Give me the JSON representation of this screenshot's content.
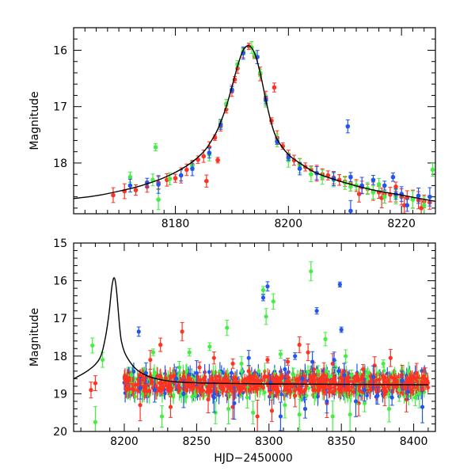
{
  "colors": {
    "red": "#ff3322",
    "green": "#44ee44",
    "blue": "#2255ee",
    "model": "#000000"
  },
  "chart_data": [
    {
      "type": "scatter",
      "xlabel": "",
      "ylabel": "Magnitude",
      "xlim": [
        8162,
        8226
      ],
      "ylim": [
        18.9,
        15.6
      ],
      "y_inverted": true,
      "xticks_major": [
        8180,
        8200,
        8220
      ],
      "xticks_minor_step": 2,
      "yticks_major": [
        16,
        17,
        18
      ],
      "yticks_minor_step": 0.2,
      "model_curve": {
        "x": [
          8162,
          8166,
          8170,
          8174,
          8178,
          8182,
          8185,
          8187,
          8188,
          8189,
          8190,
          8191,
          8192,
          8193,
          8194,
          8195,
          8196,
          8197,
          8198,
          8200,
          8202,
          8205,
          8210,
          8215,
          8220,
          8226
        ],
        "y": [
          18.63,
          18.58,
          18.5,
          18.4,
          18.26,
          18.05,
          17.8,
          17.5,
          17.28,
          17.0,
          16.65,
          16.28,
          16.0,
          15.92,
          16.05,
          16.4,
          16.88,
          17.3,
          17.58,
          17.85,
          18.0,
          18.18,
          18.35,
          18.48,
          18.57,
          18.68
        ]
      },
      "series": [
        {
          "name": "",
          "color": "red",
          "points": [
            [
              8169,
              18.57
            ],
            [
              8171,
              18.5
            ],
            [
              8173,
              18.48
            ],
            [
              8175,
              18.42
            ],
            [
              8177,
              18.35
            ],
            [
              8178.5,
              18.3
            ],
            [
              8180,
              18.27
            ],
            [
              8181,
              18.22
            ],
            [
              8182,
              18.12
            ],
            [
              8183,
              18.03
            ],
            [
              8184,
              17.94
            ],
            [
              8185,
              17.88
            ],
            [
              8186,
              17.72
            ],
            [
              8187,
              17.55
            ],
            [
              8188,
              17.35
            ],
            [
              8189,
              17.05
            ],
            [
              8190,
              16.72
            ],
            [
              8190.5,
              16.52
            ],
            [
              8191,
              16.32
            ],
            [
              8192,
              16.05
            ],
            [
              8193,
              15.93
            ],
            [
              8194,
              16.1
            ],
            [
              8195,
              16.42
            ],
            [
              8196,
              16.85
            ],
            [
              8197,
              17.25
            ],
            [
              8197.5,
              16.66
            ],
            [
              8198,
              17.55
            ],
            [
              8199,
              17.7
            ],
            [
              8200,
              17.85
            ],
            [
              8201,
              17.95
            ],
            [
              8202,
              18.02
            ],
            [
              8203,
              18.07
            ],
            [
              8204,
              18.12
            ],
            [
              8205,
              18.18
            ],
            [
              8206,
              18.2
            ],
            [
              8207,
              18.22
            ],
            [
              8208,
              18.26
            ],
            [
              8209,
              18.3
            ],
            [
              8210,
              18.33
            ],
            [
              8211,
              18.36
            ],
            [
              8212,
              18.4
            ],
            [
              8213,
              18.43
            ],
            [
              8214,
              18.46
            ],
            [
              8215,
              18.5
            ],
            [
              8216,
              18.52
            ],
            [
              8217,
              18.55
            ],
            [
              8218,
              18.56
            ],
            [
              8219,
              18.58
            ],
            [
              8220,
              18.6
            ],
            [
              8221,
              18.62
            ],
            [
              8222,
              18.64
            ],
            [
              8223,
              18.66
            ],
            [
              8224,
              18.68
            ],
            [
              8225,
              18.7
            ],
            [
              8185.5,
              18.32
            ],
            [
              8187.5,
              17.95
            ],
            [
              8219,
              18.42
            ],
            [
              8220.5,
              18.75
            ],
            [
              8223.5,
              18.8
            ],
            [
              8212.5,
              18.55
            ],
            [
              8216.5,
              18.62
            ]
          ]
        },
        {
          "name": "",
          "color": "green",
          "points": [
            [
              8172,
              18.25
            ],
            [
              8176,
              18.3
            ],
            [
              8179,
              18.28
            ],
            [
              8183,
              18.05
            ],
            [
              8186,
              17.85
            ],
            [
              8188,
              17.3
            ],
            [
              8189,
              16.95
            ],
            [
              8191,
              16.25
            ],
            [
              8192,
              16.02
            ],
            [
              8193.5,
              15.95
            ],
            [
              8194,
              16.08
            ],
            [
              8195,
              16.4
            ],
            [
              8196,
              16.9
            ],
            [
              8198,
              17.6
            ],
            [
              8200,
              17.95
            ],
            [
              8202,
              18.05
            ],
            [
              8204,
              18.2
            ],
            [
              8206,
              18.25
            ],
            [
              8208,
              18.3
            ],
            [
              8210,
              18.35
            ],
            [
              8212,
              18.4
            ],
            [
              8214,
              18.45
            ],
            [
              8215,
              18.52
            ],
            [
              8217,
              18.6
            ],
            [
              8219,
              18.6
            ],
            [
              8222,
              18.65
            ],
            [
              8225.5,
              18.12
            ],
            [
              8176.5,
              17.72
            ],
            [
              8177,
              18.65
            ],
            [
              8211,
              18.42
            ],
            [
              8216,
              18.38
            ],
            [
              8224,
              18.75
            ]
          ]
        },
        {
          "name": "",
          "color": "blue",
          "points": [
            [
              8172,
              18.4
            ],
            [
              8175,
              18.35
            ],
            [
              8177,
              18.38
            ],
            [
              8181,
              18.22
            ],
            [
              8183,
              18.1
            ],
            [
              8186,
              17.82
            ],
            [
              8188,
              17.32
            ],
            [
              8190,
              16.7
            ],
            [
              8192,
              16.05
            ],
            [
              8194.5,
              16.12
            ],
            [
              8196,
              16.88
            ],
            [
              8198,
              17.62
            ],
            [
              8200,
              17.9
            ],
            [
              8202,
              18.1
            ],
            [
              8205,
              18.18
            ],
            [
              8208,
              18.28
            ],
            [
              8210.5,
              17.35
            ],
            [
              8211,
              18.25
            ],
            [
              8213,
              18.4
            ],
            [
              8215,
              18.3
            ],
            [
              8217,
              18.4
            ],
            [
              8219,
              18.55
            ],
            [
              8221,
              18.75
            ],
            [
              8223,
              18.58
            ],
            [
              8225,
              18.6
            ],
            [
              8211,
              18.85
            ],
            [
              8218.5,
              18.25
            ],
            [
              8220,
              18.55
            ]
          ]
        }
      ]
    },
    {
      "type": "scatter",
      "xlabel": "HJD−2450000",
      "ylabel": "Magnitude",
      "xlim": [
        8165,
        8415
      ],
      "ylim": [
        20,
        15
      ],
      "y_inverted": true,
      "xticks_major": [
        8200,
        8250,
        8300,
        8350,
        8400
      ],
      "xticks_minor_step": 10,
      "yticks_major": [
        15,
        16,
        17,
        18,
        19,
        20
      ],
      "yticks_minor_step": 0.2,
      "model_curve": {
        "x": [
          8165,
          8170,
          8175,
          8180,
          8184,
          8187,
          8189,
          8190,
          8191,
          8192,
          8193,
          8194,
          8195,
          8196,
          8197,
          8198,
          8200,
          8203,
          8207,
          8212,
          8220,
          8235,
          8260,
          8300,
          8350,
          8410
        ],
        "y": [
          18.6,
          18.5,
          18.38,
          18.22,
          17.98,
          17.5,
          17.0,
          16.68,
          16.3,
          16.02,
          15.92,
          16.05,
          16.4,
          16.88,
          17.3,
          17.6,
          17.88,
          18.1,
          18.3,
          18.45,
          18.58,
          18.68,
          18.72,
          18.74,
          18.75,
          18.76
        ]
      },
      "series": [
        {
          "name": "",
          "color": "red",
          "points": [
            [
              8218,
              18.1
            ],
            [
              8225,
              17.7
            ],
            [
              8240,
              17.35
            ],
            [
              8252,
              18.3
            ],
            [
              8262,
              18.05
            ],
            [
              8275,
              18.2
            ],
            [
              8286,
              18.4
            ],
            [
              8299,
              18.1
            ],
            [
              8305,
              18.9
            ],
            [
              8313,
              18.15
            ],
            [
              8321,
              17.7
            ],
            [
              8327,
              17.9
            ],
            [
              8331,
              18.35
            ],
            [
              8338,
              18.5
            ],
            [
              8344,
              18.2
            ],
            [
              8352,
              18.4
            ],
            [
              8365,
              18.35
            ],
            [
              8373,
              18.25
            ],
            [
              8384,
              18.05
            ],
            [
              8392,
              18.5
            ],
            [
              8402,
              18.45
            ],
            [
              8408,
              18.6
            ],
            [
              8211,
              19.3
            ],
            [
              8232,
              19.35
            ],
            [
              8258,
              19.15
            ],
            [
              8275,
              19.35
            ],
            [
              8292,
              19.6
            ],
            [
              8302,
              19.45
            ],
            [
              8318,
              19.05
            ],
            [
              8340,
              19.25
            ],
            [
              8362,
              19.25
            ],
            [
              8380,
              19.0
            ],
            [
              8395,
              19.15
            ],
            [
              8180,
              18.72
            ],
            [
              8177,
              18.9
            ]
          ]
        },
        {
          "name": "",
          "color": "green",
          "points": [
            [
              8178,
              17.72
            ],
            [
              8180,
              19.75
            ],
            [
              8185,
              18.1
            ],
            [
              8205,
              18.5
            ],
            [
              8220,
              17.9
            ],
            [
              8238,
              18.3
            ],
            [
              8245,
              17.9
            ],
            [
              8259,
              17.75
            ],
            [
              8271,
              17.25
            ],
            [
              8281,
              18.2
            ],
            [
              8289,
              19.5
            ],
            [
              8296,
              16.25
            ],
            [
              8298,
              16.95
            ],
            [
              8303,
              16.55
            ],
            [
              8308,
              17.95
            ],
            [
              8317,
              18.5
            ],
            [
              8329,
              15.75
            ],
            [
              8334,
              18.4
            ],
            [
              8339,
              17.55
            ],
            [
              8346,
              18.3
            ],
            [
              8353,
              18.0
            ],
            [
              8357,
              18.5
            ],
            [
              8361,
              19.0
            ],
            [
              8368,
              18.6
            ],
            [
              8379,
              18.2
            ],
            [
              8390,
              18.9
            ],
            [
              8404,
              19.0
            ],
            [
              8226,
              19.6
            ],
            [
              8263,
              19.5
            ],
            [
              8272,
              19.4
            ],
            [
              8311,
              19.3
            ],
            [
              8321,
              19.55
            ],
            [
              8344,
              19.6
            ],
            [
              8356,
              19.55
            ],
            [
              8383,
              19.4
            ],
            [
              8401,
              19.1
            ],
            [
              8285,
              19.1
            ],
            [
              8366,
              19.25
            ]
          ]
        },
        {
          "name": "",
          "color": "blue",
          "points": [
            [
              8210,
              17.35
            ],
            [
              8211,
              18.85
            ],
            [
              8221,
              18.9
            ],
            [
              8236,
              18.6
            ],
            [
              8241,
              19.0
            ],
            [
              8262,
              19.1
            ],
            [
              8276,
              19.25
            ],
            [
              8286,
              18.05
            ],
            [
              8296,
              16.45
            ],
            [
              8299,
              16.15
            ],
            [
              8301,
              18.7
            ],
            [
              8311,
              18.35
            ],
            [
              8318,
              18.0
            ],
            [
              8323,
              18.6
            ],
            [
              8325,
              19.4
            ],
            [
              8330,
              18.15
            ],
            [
              8333,
              16.8
            ],
            [
              8345,
              18.1
            ],
            [
              8349,
              16.1
            ],
            [
              8350,
              17.3
            ],
            [
              8352,
              18.5
            ],
            [
              8360,
              19.2
            ],
            [
              8366,
              18.9
            ],
            [
              8375,
              19.05
            ],
            [
              8385,
              19.1
            ],
            [
              8396,
              18.95
            ],
            [
              8406,
              19.35
            ],
            [
              8215,
              18.45
            ],
            [
              8250,
              18.45
            ],
            [
              8308,
              19.6
            ],
            [
              8340,
              19.2
            ],
            [
              8372,
              18.55
            ],
            [
              8392,
              18.65
            ]
          ]
        }
      ]
    }
  ]
}
